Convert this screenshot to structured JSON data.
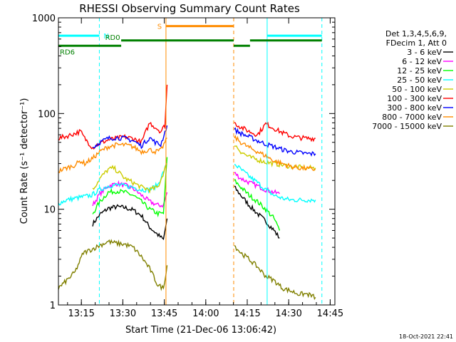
{
  "chart_data": {
    "type": "line",
    "title": "RHESSI Observing Summary Count Rates",
    "xlabel": "Start Time (21-Dec-06 13:06:42)",
    "ylabel": "Count Rate (s⁻¹ detector⁻¹)",
    "yscale": "log",
    "ylim": [
      1,
      1000
    ],
    "xlim_minutes": [
      0,
      100
    ],
    "x_ticks": [
      {
        "label": "13:15",
        "minute": 8.3
      },
      {
        "label": "13:30",
        "minute": 23.3
      },
      {
        "label": "13:45",
        "minute": 38.3
      },
      {
        "label": "14:00",
        "minute": 53.3
      },
      {
        "label": "14:15",
        "minute": 68.3
      },
      {
        "label": "14:30",
        "minute": 83.3
      },
      {
        "label": "14:45",
        "minute": 98.3
      }
    ],
    "y_ticks": [
      {
        "label": "1",
        "value": 1
      },
      {
        "label": "10",
        "value": 10
      },
      {
        "label": "100",
        "value": 100
      },
      {
        "label": "1000",
        "value": 1000
      }
    ],
    "legend_header": [
      "Det 1,3,4,5,6,9,",
      "FDecim 1, Att 0"
    ],
    "legend_placement": "right",
    "timestamp": "18-Oct-2021 22:41",
    "gaps": [
      [
        39.6,
        63.3
      ]
    ],
    "series": [
      {
        "name": "3 - 6 keV",
        "color": "#000000",
        "points": [
          [
            12.4,
            7
          ],
          [
            15,
            8.8
          ],
          [
            18,
            10.2
          ],
          [
            21,
            10.6
          ],
          [
            24,
            10.4
          ],
          [
            27,
            9.8
          ],
          [
            30,
            8.6
          ],
          [
            33,
            6.5
          ],
          [
            36,
            5.4
          ],
          [
            38,
            4.8
          ],
          [
            39.3,
            8
          ],
          [
            63.6,
            17
          ],
          [
            66,
            14
          ],
          [
            69,
            11
          ],
          [
            72,
            9
          ],
          [
            75,
            7.5
          ],
          [
            78,
            6
          ],
          [
            80,
            5
          ]
        ]
      },
      {
        "name": "6 - 12 keV",
        "color": "#ff00ff",
        "points": [
          [
            12.4,
            11
          ],
          [
            15,
            14.5
          ],
          [
            18,
            17.5
          ],
          [
            21,
            18.5
          ],
          [
            24,
            17.8
          ],
          [
            27,
            16.5
          ],
          [
            30,
            14
          ],
          [
            33,
            12
          ],
          [
            36,
            11
          ],
          [
            38,
            11
          ],
          [
            39.3,
            15
          ],
          [
            63.6,
            24
          ],
          [
            66,
            21
          ],
          [
            69,
            19
          ],
          [
            72,
            17.5
          ],
          [
            75,
            16
          ],
          [
            78,
            15
          ],
          [
            80,
            14.5
          ]
        ]
      },
      {
        "name": "12 - 25 keV",
        "color": "#00ff00",
        "points": [
          [
            12.4,
            9
          ],
          [
            15,
            12
          ],
          [
            18,
            15
          ],
          [
            21,
            15.5
          ],
          [
            24,
            15
          ],
          [
            27,
            14
          ],
          [
            30,
            12
          ],
          [
            33,
            10
          ],
          [
            36,
            9
          ],
          [
            38,
            9
          ],
          [
            39.3,
            35
          ],
          [
            63.6,
            20
          ],
          [
            66,
            17
          ],
          [
            69,
            14
          ],
          [
            72,
            12
          ],
          [
            75,
            10
          ],
          [
            78,
            8
          ],
          [
            80,
            6
          ]
        ]
      },
      {
        "name": "25 - 50 keV",
        "color": "#00ffff",
        "points": [
          [
            0,
            11.5
          ],
          [
            3,
            12.5
          ],
          [
            6,
            13
          ],
          [
            9,
            13.5
          ],
          [
            12,
            14
          ],
          [
            15,
            16
          ],
          [
            18,
            17.5
          ],
          [
            21,
            18
          ],
          [
            24,
            17.5
          ],
          [
            27,
            17
          ],
          [
            30,
            16
          ],
          [
            33,
            16
          ],
          [
            36,
            18
          ],
          [
            39.3,
            30
          ],
          [
            63.6,
            30
          ],
          [
            66,
            26
          ],
          [
            69,
            22
          ],
          [
            72,
            19
          ],
          [
            75,
            16
          ],
          [
            78,
            14
          ],
          [
            81,
            13
          ],
          [
            84,
            12.5
          ],
          [
            87,
            12.5
          ],
          [
            90,
            12.5
          ],
          [
            93,
            12.5
          ]
        ]
      },
      {
        "name": "50 - 100 keV",
        "color": "#cccc00",
        "points": [
          [
            12.4,
            16
          ],
          [
            15,
            21
          ],
          [
            18,
            26
          ],
          [
            20,
            27
          ],
          [
            22,
            24
          ],
          [
            24,
            21
          ],
          [
            27,
            19
          ],
          [
            30,
            17
          ],
          [
            33,
            16
          ],
          [
            36,
            17
          ],
          [
            39.3,
            30
          ],
          [
            63.6,
            48
          ],
          [
            66,
            40
          ],
          [
            69,
            35
          ],
          [
            72,
            33
          ],
          [
            75,
            31
          ],
          [
            78,
            30
          ],
          [
            81,
            29
          ],
          [
            84,
            28
          ],
          [
            87,
            27.5
          ],
          [
            90,
            27
          ],
          [
            93,
            27
          ]
        ]
      },
      {
        "name": "100 - 300 keV",
        "color": "#ff0000",
        "points": [
          [
            0,
            55
          ],
          [
            3,
            58
          ],
          [
            6,
            62
          ],
          [
            8,
            65
          ],
          [
            9.5,
            55
          ],
          [
            12.4,
            44
          ],
          [
            15,
            49
          ],
          [
            18,
            53
          ],
          [
            21,
            55
          ],
          [
            24,
            57
          ],
          [
            27,
            55
          ],
          [
            30,
            50
          ],
          [
            33,
            80
          ],
          [
            35,
            72
          ],
          [
            37,
            65
          ],
          [
            38.5,
            75
          ],
          [
            39.3,
            200
          ],
          [
            63.6,
            80
          ],
          [
            66,
            72
          ],
          [
            69,
            65
          ],
          [
            72,
            60
          ],
          [
            75,
            78
          ],
          [
            78,
            70
          ],
          [
            81,
            63
          ],
          [
            84,
            58
          ],
          [
            87,
            56
          ],
          [
            90,
            55
          ],
          [
            93,
            55
          ]
        ]
      },
      {
        "name": "300 - 800 keV",
        "color": "#0000ff",
        "points": [
          [
            12.4,
            44
          ],
          [
            15,
            50
          ],
          [
            18,
            55
          ],
          [
            21,
            56
          ],
          [
            24,
            55
          ],
          [
            27,
            52
          ],
          [
            30,
            46
          ],
          [
            33,
            56
          ],
          [
            35,
            50
          ],
          [
            37,
            47
          ],
          [
            39.3,
            75
          ],
          [
            63.6,
            68
          ],
          [
            66,
            62
          ],
          [
            69,
            57
          ],
          [
            72,
            52
          ],
          [
            75,
            48
          ],
          [
            78,
            45
          ],
          [
            81,
            42
          ],
          [
            84,
            40
          ],
          [
            87,
            39
          ],
          [
            90,
            38
          ],
          [
            93,
            38
          ]
        ]
      },
      {
        "name": "800 - 7000 keV",
        "color": "#ff8c00",
        "points": [
          [
            0,
            25
          ],
          [
            3,
            27
          ],
          [
            6,
            29
          ],
          [
            8,
            32
          ],
          [
            9.5,
            30
          ],
          [
            12.4,
            34
          ],
          [
            15,
            40
          ],
          [
            18,
            45
          ],
          [
            21,
            47
          ],
          [
            24,
            47
          ],
          [
            27,
            45
          ],
          [
            30,
            40
          ],
          [
            33,
            42
          ],
          [
            35,
            40
          ],
          [
            37,
            41
          ],
          [
            39.3,
            55
          ],
          [
            63.6,
            57
          ],
          [
            66,
            50
          ],
          [
            69,
            44
          ],
          [
            72,
            40
          ],
          [
            75,
            36
          ],
          [
            78,
            32
          ],
          [
            81,
            30
          ],
          [
            84,
            28
          ],
          [
            87,
            27
          ],
          [
            90,
            26.5
          ],
          [
            93,
            26
          ]
        ]
      },
      {
        "name": "7000 - 15000 keV",
        "color": "#808000",
        "points": [
          [
            0,
            1.5
          ],
          [
            3,
            1.8
          ],
          [
            6,
            2.2
          ],
          [
            9,
            3.5
          ],
          [
            12,
            3.8
          ],
          [
            15,
            4.2
          ],
          [
            18,
            4.6
          ],
          [
            21,
            4.4
          ],
          [
            24,
            4.3
          ],
          [
            27,
            4.0
          ],
          [
            30,
            3.2
          ],
          [
            33,
            2.4
          ],
          [
            36,
            1.6
          ],
          [
            38,
            1.5
          ],
          [
            39.3,
            2.6
          ],
          [
            63.6,
            4.2
          ],
          [
            66,
            3.5
          ],
          [
            69,
            3.0
          ],
          [
            72,
            2.5
          ],
          [
            75,
            2.0
          ],
          [
            78,
            1.8
          ],
          [
            81,
            1.5
          ],
          [
            84,
            1.4
          ],
          [
            87,
            1.3
          ],
          [
            90,
            1.3
          ],
          [
            93,
            1.2
          ]
        ]
      }
    ],
    "flag_bars": [
      {
        "label": "N",
        "color": "#00ffff",
        "segments": [
          [
            0,
            14.8
          ],
          [
            75.5,
            95.3
          ]
        ],
        "level": 650,
        "vlines": [
          14.8,
          75.5,
          95.3
        ]
      },
      {
        "label": "S",
        "color": "#ff8c00",
        "segments": [
          [
            38.9,
            63.4
          ]
        ],
        "level": 820,
        "vlines": [
          38.9,
          63.4
        ]
      },
      {
        "label": "RD0",
        "color": "#008000",
        "segments": [
          [
            22.7,
            63.4
          ],
          [
            69.3,
            95.3
          ]
        ],
        "level": 580,
        "vlines": []
      },
      {
        "label": "RD6",
        "color": "#008000",
        "segments": [
          [
            0,
            22.7
          ],
          [
            63.4,
            69.3
          ]
        ],
        "level": 510,
        "vlines": []
      }
    ]
  }
}
